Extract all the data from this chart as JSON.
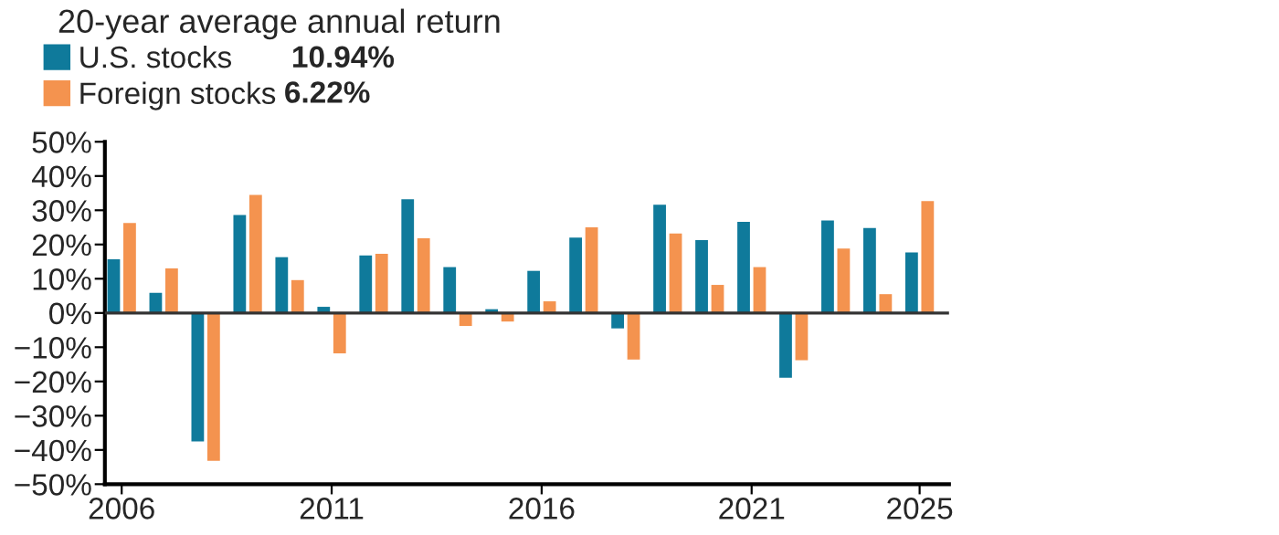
{
  "chart_data": {
    "type": "bar",
    "title": "20-year average annual return",
    "x": [
      2006,
      2007,
      2008,
      2009,
      2010,
      2011,
      2012,
      2013,
      2014,
      2015,
      2016,
      2017,
      2018,
      2019,
      2020,
      2021,
      2022,
      2023,
      2024,
      2025
    ],
    "series": [
      {
        "name": "U.S. stocks",
        "color": "#0f7a9b",
        "values": [
          15.7,
          5.9,
          -37.5,
          28.6,
          16.3,
          1.8,
          16.8,
          33.2,
          13.4,
          1.1,
          12.3,
          22,
          -4.5,
          31.6,
          21.3,
          26.6,
          -18.9,
          27,
          24.8,
          17.7
        ]
      },
      {
        "name": "Foreign stocks",
        "color": "#f4934f",
        "values": [
          26.3,
          13,
          -43.2,
          34.5,
          9.6,
          -11.8,
          17.3,
          21.8,
          -3.8,
          -2.5,
          3.4,
          25,
          -13.6,
          23.2,
          8.2,
          13.4,
          -13.8,
          18.8,
          5.5,
          32.7
        ]
      }
    ],
    "annotations": [
      "10.94%",
      "6.22%"
    ],
    "xlim": [
      2005.6,
      2025.7
    ],
    "xticks": [
      2006,
      2011,
      2016,
      2021,
      2025
    ],
    "ylim": [
      -50,
      50
    ],
    "yticks": [
      {
        "value": 50,
        "label": "50%"
      },
      {
        "value": 40,
        "label": "40%"
      },
      {
        "value": 30,
        "label": "30%"
      },
      {
        "value": 20,
        "label": "20%"
      },
      {
        "value": 10,
        "label": "10%"
      },
      {
        "value": 0,
        "label": "0%"
      },
      {
        "value": -10,
        "label": "−10%"
      },
      {
        "value": -20,
        "label": "−20%"
      },
      {
        "value": -30,
        "label": "−30%"
      },
      {
        "value": -40,
        "label": "−40%"
      },
      {
        "value": -50,
        "label": "−50%"
      }
    ],
    "ref_lines": [
      {
        "axis": "y",
        "value": 0,
        "color": "#333333"
      }
    ],
    "grid": false,
    "legend": "top left"
  }
}
